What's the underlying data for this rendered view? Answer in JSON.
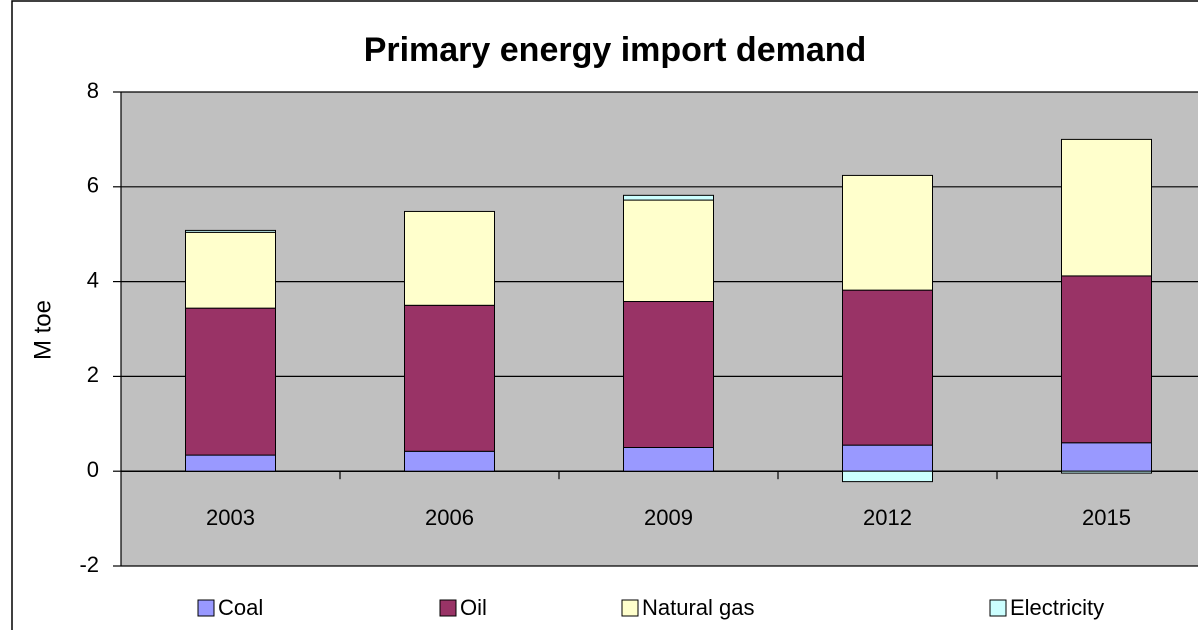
{
  "chart_data": {
    "type": "stacked_bar",
    "title": "Primary energy import demand",
    "y_label": "M toe",
    "categories": [
      "2003",
      "2006",
      "2009",
      "2012",
      "2015"
    ],
    "series": [
      {
        "name": "Coal",
        "color": "#9999ff",
        "values": [
          0.34,
          0.42,
          0.5,
          0.55,
          0.6
        ]
      },
      {
        "name": "Oil",
        "color": "#993366",
        "values": [
          3.1,
          3.08,
          3.08,
          3.27,
          3.52
        ]
      },
      {
        "name": "Natural gas",
        "color": "#ffffcc",
        "values": [
          1.6,
          1.98,
          2.14,
          2.42,
          2.88
        ]
      },
      {
        "name": "Electricity",
        "color": "#ccffff",
        "values": [
          0.04,
          0,
          0.1,
          -0.22,
          -0.04
        ]
      }
    ],
    "ylim": [
      -2,
      8
    ],
    "yticks": [
      -2,
      0,
      2,
      4,
      6,
      8
    ],
    "grid": true,
    "legend": "bottom"
  }
}
